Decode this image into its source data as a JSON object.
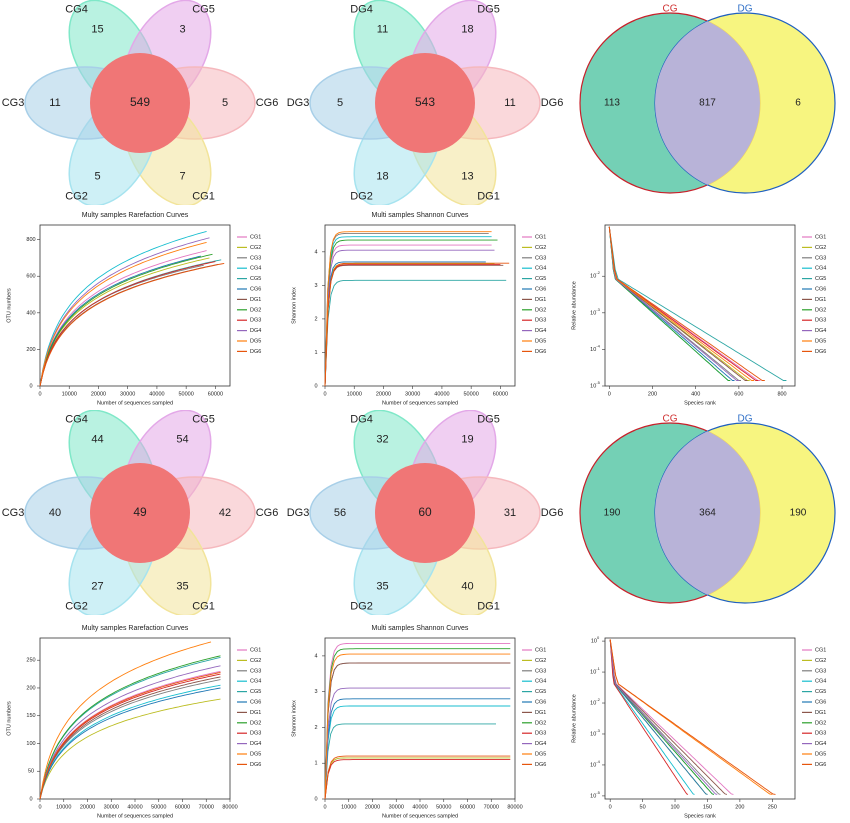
{
  "venn_flowers": [
    {
      "id": "cg-otu",
      "core": "549",
      "petals": [
        {
          "label": "CG4",
          "value": "15",
          "color": "#7fe8c8"
        },
        {
          "label": "CG5",
          "value": "3",
          "color": "#e3a8e8"
        },
        {
          "label": "CG6",
          "value": "5",
          "color": "#f5b8bd"
        },
        {
          "label": "CG1",
          "value": "7",
          "color": "#f2e49a"
        },
        {
          "label": "CG2",
          "value": "5",
          "color": "#a6e3ef"
        },
        {
          "label": "CG3",
          "value": "11",
          "color": "#a8cfe8"
        }
      ]
    },
    {
      "id": "dg-otu",
      "core": "543",
      "petals": [
        {
          "label": "DG4",
          "value": "11",
          "color": "#7fe8c8"
        },
        {
          "label": "DG5",
          "value": "18",
          "color": "#e3a8e8"
        },
        {
          "label": "DG6",
          "value": "11",
          "color": "#f5b8bd"
        },
        {
          "label": "DG1",
          "value": "13",
          "color": "#f2e49a"
        },
        {
          "label": "DG2",
          "value": "18",
          "color": "#a6e3ef"
        },
        {
          "label": "DG3",
          "value": "5",
          "color": "#a8cfe8"
        }
      ]
    },
    {
      "id": "cg-2",
      "core": "49",
      "petals": [
        {
          "label": "CG4",
          "value": "44",
          "color": "#7fe8c8"
        },
        {
          "label": "CG5",
          "value": "54",
          "color": "#e3a8e8"
        },
        {
          "label": "CG6",
          "value": "42",
          "color": "#f5b8bd"
        },
        {
          "label": "CG1",
          "value": "35",
          "color": "#f2e49a"
        },
        {
          "label": "CG2",
          "value": "27",
          "color": "#a6e3ef"
        },
        {
          "label": "CG3",
          "value": "40",
          "color": "#a8cfe8"
        }
      ]
    },
    {
      "id": "dg-2",
      "core": "60",
      "petals": [
        {
          "label": "DG4",
          "value": "32",
          "color": "#7fe8c8"
        },
        {
          "label": "DG5",
          "value": "19",
          "color": "#e3a8e8"
        },
        {
          "label": "DG6",
          "value": "31",
          "color": "#f5b8bd"
        },
        {
          "label": "DG1",
          "value": "40",
          "color": "#f2e49a"
        },
        {
          "label": "DG2",
          "value": "35",
          "color": "#a6e3ef"
        },
        {
          "label": "DG3",
          "value": "56",
          "color": "#a8cfe8"
        }
      ]
    }
  ],
  "venn_pairs": [
    {
      "left_name": "CG",
      "right_name": "DG",
      "left_only": "113",
      "shared": "817",
      "right_only": "6"
    },
    {
      "left_name": "CG",
      "right_name": "DG",
      "left_only": "190",
      "shared": "364",
      "right_only": "190"
    }
  ],
  "legend_colors": {
    "CG1": "#e377c2",
    "CG2": "#bcbd22",
    "CG3": "#7f7f7f",
    "CG4": "#17becf",
    "CG5": "#2ca6a4",
    "CG6": "#1f77b4",
    "DG1": "#8c564b",
    "DG2": "#2ca02c",
    "DG3": "#d62728",
    "DG4": "#9467bd",
    "DG5": "#ff7f0e",
    "DG6": "#e6550d"
  },
  "chart_data": [
    {
      "id": "rare1",
      "type": "line",
      "title": "Multy samples Rarefaction Curves",
      "xlabel": "Number of sequences sampled",
      "ylabel": "OTU numbers",
      "xlim": [
        0,
        65000
      ],
      "ylim": [
        0,
        880
      ],
      "xticks": [
        0,
        10000,
        20000,
        30000,
        40000,
        50000,
        60000
      ],
      "yticks": [
        0,
        200,
        400,
        600,
        800
      ],
      "series": [
        {
          "name": "CG1",
          "end_x": 57000,
          "end_y": 740
        },
        {
          "name": "CG2",
          "end_x": 58000,
          "end_y": 700
        },
        {
          "name": "CG3",
          "end_x": 56000,
          "end_y": 660
        },
        {
          "name": "CG4",
          "end_x": 57000,
          "end_y": 845
        },
        {
          "name": "CG5",
          "end_x": 62000,
          "end_y": 690
        },
        {
          "name": "CG6",
          "end_x": 55000,
          "end_y": 710
        },
        {
          "name": "DG1",
          "end_x": 61000,
          "end_y": 665
        },
        {
          "name": "DG2",
          "end_x": 59000,
          "end_y": 720
        },
        {
          "name": "DG3",
          "end_x": 60000,
          "end_y": 680
        },
        {
          "name": "DG4",
          "end_x": 58000,
          "end_y": 810
        },
        {
          "name": "DG5",
          "end_x": 57000,
          "end_y": 785
        },
        {
          "name": "DG6",
          "end_x": 63000,
          "end_y": 670
        }
      ]
    },
    {
      "id": "shan1",
      "type": "line",
      "title": "Multi samples Shannon Curves",
      "xlabel": "Number of sequences sampled",
      "ylabel": "Shannon index",
      "xlim": [
        0,
        65000
      ],
      "ylim": [
        0,
        4.8
      ],
      "xticks": [
        0,
        10000,
        20000,
        30000,
        40000,
        50000,
        60000
      ],
      "yticks": [
        0,
        1,
        2,
        3,
        4
      ],
      "series": [
        {
          "name": "CG1",
          "end_x": 57000,
          "end_y": 4.2
        },
        {
          "name": "CG2",
          "end_x": 58000,
          "end_y": 3.65
        },
        {
          "name": "CG3",
          "end_x": 56000,
          "end_y": 4.55
        },
        {
          "name": "CG4",
          "end_x": 57000,
          "end_y": 4.45
        },
        {
          "name": "CG5",
          "end_x": 62000,
          "end_y": 3.15
        },
        {
          "name": "CG6",
          "end_x": 55000,
          "end_y": 3.7
        },
        {
          "name": "DG1",
          "end_x": 61000,
          "end_y": 3.6
        },
        {
          "name": "DG2",
          "end_x": 59000,
          "end_y": 4.35
        },
        {
          "name": "DG3",
          "end_x": 60000,
          "end_y": 3.62
        },
        {
          "name": "DG4",
          "end_x": 58000,
          "end_y": 4.05
        },
        {
          "name": "DG5",
          "end_x": 57000,
          "end_y": 4.6
        },
        {
          "name": "DG6",
          "end_x": 63000,
          "end_y": 3.66
        }
      ]
    },
    {
      "id": "rank1",
      "type": "line",
      "title": "",
      "xlabel": "Species rank",
      "ylabel": "Relative abundance",
      "log_y": true,
      "xlim": [
        -20,
        860
      ],
      "ylim_exp": [
        -5,
        -0.6
      ],
      "xticks": [
        0,
        200,
        400,
        600,
        800
      ],
      "yticks_exp": [
        -5,
        -4,
        -3,
        -2
      ],
      "series": [
        {
          "name": "CG1",
          "end_x": 700
        },
        {
          "name": "CG2",
          "end_x": 650
        },
        {
          "name": "CG3",
          "end_x": 610
        },
        {
          "name": "CG4",
          "end_x": 560
        },
        {
          "name": "CG5",
          "end_x": 820
        },
        {
          "name": "CG6",
          "end_x": 580
        },
        {
          "name": "DG1",
          "end_x": 640
        },
        {
          "name": "DG2",
          "end_x": 560
        },
        {
          "name": "DG3",
          "end_x": 690
        },
        {
          "name": "DG4",
          "end_x": 600
        },
        {
          "name": "DG5",
          "end_x": 670
        },
        {
          "name": "DG6",
          "end_x": 720
        }
      ]
    },
    {
      "id": "rare2",
      "type": "line",
      "title": "Multy samples Rarefaction Curves",
      "xlabel": "Number of sequences sampled",
      "ylabel": "OTU numbers",
      "xlim": [
        0,
        80000
      ],
      "ylim": [
        0,
        290
      ],
      "xticks": [
        0,
        10000,
        20000,
        30000,
        40000,
        50000,
        60000,
        70000,
        80000
      ],
      "yticks": [
        0,
        50,
        100,
        150,
        200,
        250
      ],
      "series": [
        {
          "name": "CG1",
          "end_x": 76000,
          "end_y": 230
        },
        {
          "name": "CG2",
          "end_x": 76000,
          "end_y": 180
        },
        {
          "name": "CG3",
          "end_x": 76000,
          "end_y": 215
        },
        {
          "name": "CG4",
          "end_x": 76000,
          "end_y": 205
        },
        {
          "name": "CG5",
          "end_x": 76000,
          "end_y": 255
        },
        {
          "name": "CG6",
          "end_x": 76000,
          "end_y": 200
        },
        {
          "name": "DG1",
          "end_x": 76000,
          "end_y": 220
        },
        {
          "name": "DG2",
          "end_x": 76000,
          "end_y": 258
        },
        {
          "name": "DG3",
          "end_x": 76000,
          "end_y": 225
        },
        {
          "name": "DG4",
          "end_x": 76000,
          "end_y": 240
        },
        {
          "name": "DG5",
          "end_x": 72000,
          "end_y": 283
        },
        {
          "name": "DG6",
          "end_x": 76000,
          "end_y": 228
        }
      ]
    },
    {
      "id": "shan2",
      "type": "line",
      "title": "Multi samples Shannon Curves",
      "xlabel": "Number of sequences sampled",
      "ylabel": "Shannon index",
      "xlim": [
        0,
        80000
      ],
      "ylim": [
        0,
        4.5
      ],
      "xticks": [
        0,
        10000,
        20000,
        30000,
        40000,
        50000,
        60000,
        70000,
        80000
      ],
      "yticks": [
        0,
        1,
        2,
        3,
        4
      ],
      "series": [
        {
          "name": "CG1",
          "end_x": 78000,
          "end_y": 4.35
        },
        {
          "name": "CG2",
          "end_x": 78000,
          "end_y": 1.15
        },
        {
          "name": "CG3",
          "end_x": 78000,
          "end_y": 3.8
        },
        {
          "name": "CG4",
          "end_x": 78000,
          "end_y": 2.6
        },
        {
          "name": "CG5",
          "end_x": 72000,
          "end_y": 2.1
        },
        {
          "name": "CG6",
          "end_x": 78000,
          "end_y": 2.8
        },
        {
          "name": "DG1",
          "end_x": 78000,
          "end_y": 3.8
        },
        {
          "name": "DG2",
          "end_x": 78000,
          "end_y": 4.2
        },
        {
          "name": "DG3",
          "end_x": 78000,
          "end_y": 1.1
        },
        {
          "name": "DG4",
          "end_x": 78000,
          "end_y": 3.1
        },
        {
          "name": "DG5",
          "end_x": 78000,
          "end_y": 4.05
        },
        {
          "name": "DG6",
          "end_x": 78000,
          "end_y": 1.2
        }
      ]
    },
    {
      "id": "rank2",
      "type": "line",
      "title": "",
      "xlabel": "Species rank",
      "ylabel": "Relative abundance",
      "log_y": true,
      "xlim": [
        -8,
        285
      ],
      "ylim_exp": [
        -5.1,
        0.1
      ],
      "xticks": [
        0,
        50,
        100,
        150,
        200,
        250
      ],
      "yticks_exp": [
        -5,
        -4,
        -3,
        -2,
        -1,
        0
      ],
      "series": [
        {
          "name": "CG1",
          "end_x": 190
        },
        {
          "name": "CG2",
          "end_x": 150
        },
        {
          "name": "CG3",
          "end_x": 170
        },
        {
          "name": "CG4",
          "end_x": 130
        },
        {
          "name": "CG5",
          "end_x": 160
        },
        {
          "name": "CG6",
          "end_x": 150
        },
        {
          "name": "DG1",
          "end_x": 180
        },
        {
          "name": "DG2",
          "end_x": 160
        },
        {
          "name": "DG3",
          "end_x": 120
        },
        {
          "name": "DG4",
          "end_x": 165
        },
        {
          "name": "DG5",
          "end_x": 250
        },
        {
          "name": "DG6",
          "end_x": 255
        }
      ]
    }
  ]
}
